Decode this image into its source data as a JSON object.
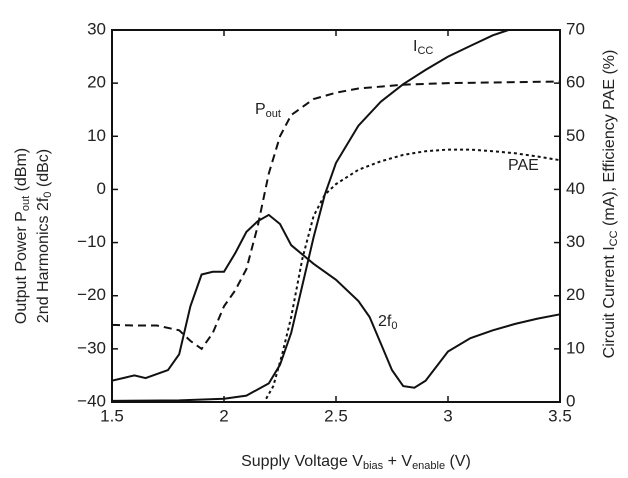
{
  "chart_data": {
    "type": "line",
    "xlabel": [
      "Supply Voltage  V",
      "bias",
      " + V",
      "enable",
      " (V)"
    ],
    "ylabel": [
      [
        "Output Power  P",
        "out",
        " (dBm)"
      ],
      [
        "2nd Harmonics  2f",
        "0",
        " (dBc)"
      ]
    ],
    "y2label": [
      "Circuit Current  I",
      "CC",
      " (mA), Efficiency  PAE (%)"
    ],
    "xlim": [
      1.5,
      3.5
    ],
    "xticks": [
      1.5,
      2,
      2.5,
      3,
      3.5
    ],
    "ylim": [
      -40,
      30
    ],
    "yticks": [
      {
        "value": -40,
        "label": "−40"
      },
      {
        "value": -30,
        "label": "−30"
      },
      {
        "value": -20,
        "label": "−20"
      },
      {
        "value": -10,
        "label": "−10"
      },
      0,
      10,
      20,
      30
    ],
    "y2lim": [
      0,
      70
    ],
    "y2ticks": [
      0,
      10,
      20,
      30,
      40,
      50,
      60,
      70
    ],
    "series": [
      {
        "name": [
          "I",
          "CC"
        ],
        "color": "#111111",
        "style": "solid",
        "axis": "y2",
        "x": [
          1.5,
          1.8,
          2.0,
          2.1,
          2.2,
          2.25,
          2.3,
          2.35,
          2.4,
          2.45,
          2.5,
          2.6,
          2.7,
          2.8,
          2.9,
          3.0,
          3.1,
          3.2,
          3.27
        ],
        "values": [
          0.2,
          0.3,
          0.6,
          1.2,
          3.5,
          7,
          13,
          22,
          31,
          39,
          45,
          52,
          56.5,
          59.8,
          62.5,
          65,
          67,
          69,
          70
        ]
      },
      {
        "name": [
          "P",
          "out"
        ],
        "color": "#111111",
        "style": "dashed",
        "x": [
          1.5,
          1.6,
          1.7,
          1.8,
          1.85,
          1.9,
          1.95,
          2.0,
          2.05,
          2.1,
          2.15,
          2.2,
          2.25,
          2.3,
          2.4,
          2.5,
          2.6,
          2.8,
          3.0,
          3.5
        ],
        "values": [
          -25.5,
          -25.6,
          -25.6,
          -26.5,
          -28.5,
          -30,
          -27,
          -22,
          -19,
          -15,
          -7,
          3,
          10,
          14,
          17,
          18.2,
          19,
          19.7,
          20,
          20.3
        ]
      },
      {
        "name": [
          "PAE"
        ],
        "color": "#111111",
        "style": "dotted",
        "axis": "y2",
        "x": [
          1.5,
          2.0,
          2.18,
          2.22,
          2.26,
          2.3,
          2.35,
          2.4,
          2.45,
          2.5,
          2.6,
          2.7,
          2.8,
          2.9,
          3.0,
          3.1,
          3.2,
          3.3,
          3.4,
          3.5
        ],
        "values": [
          0,
          0,
          0,
          3,
          9,
          16,
          27,
          35,
          39,
          41,
          43.7,
          45.3,
          46.5,
          47.2,
          47.5,
          47.5,
          47.2,
          46.8,
          46.2,
          45.5
        ]
      },
      {
        "name": [
          "2f",
          "0"
        ],
        "color": "#111111",
        "style": "solid",
        "x": [
          1.5,
          1.6,
          1.65,
          1.75,
          1.8,
          1.85,
          1.9,
          1.95,
          2.0,
          2.05,
          2.1,
          2.15,
          2.2,
          2.25,
          2.3,
          2.4,
          2.5,
          2.6,
          2.65,
          2.7,
          2.75,
          2.8,
          2.85,
          2.9,
          3.0,
          3.1,
          3.2,
          3.3,
          3.4,
          3.5
        ],
        "values": [
          -36,
          -35,
          -35.5,
          -34,
          -31,
          -22,
          -16,
          -15.5,
          -15.5,
          -12,
          -8,
          -6,
          -4.8,
          -6.5,
          -10.5,
          -14,
          -17,
          -21,
          -24,
          -29,
          -34,
          -37,
          -37.3,
          -36,
          -30.5,
          -28,
          -26.5,
          -25.3,
          -24.3,
          -23.5
        ]
      }
    ]
  }
}
